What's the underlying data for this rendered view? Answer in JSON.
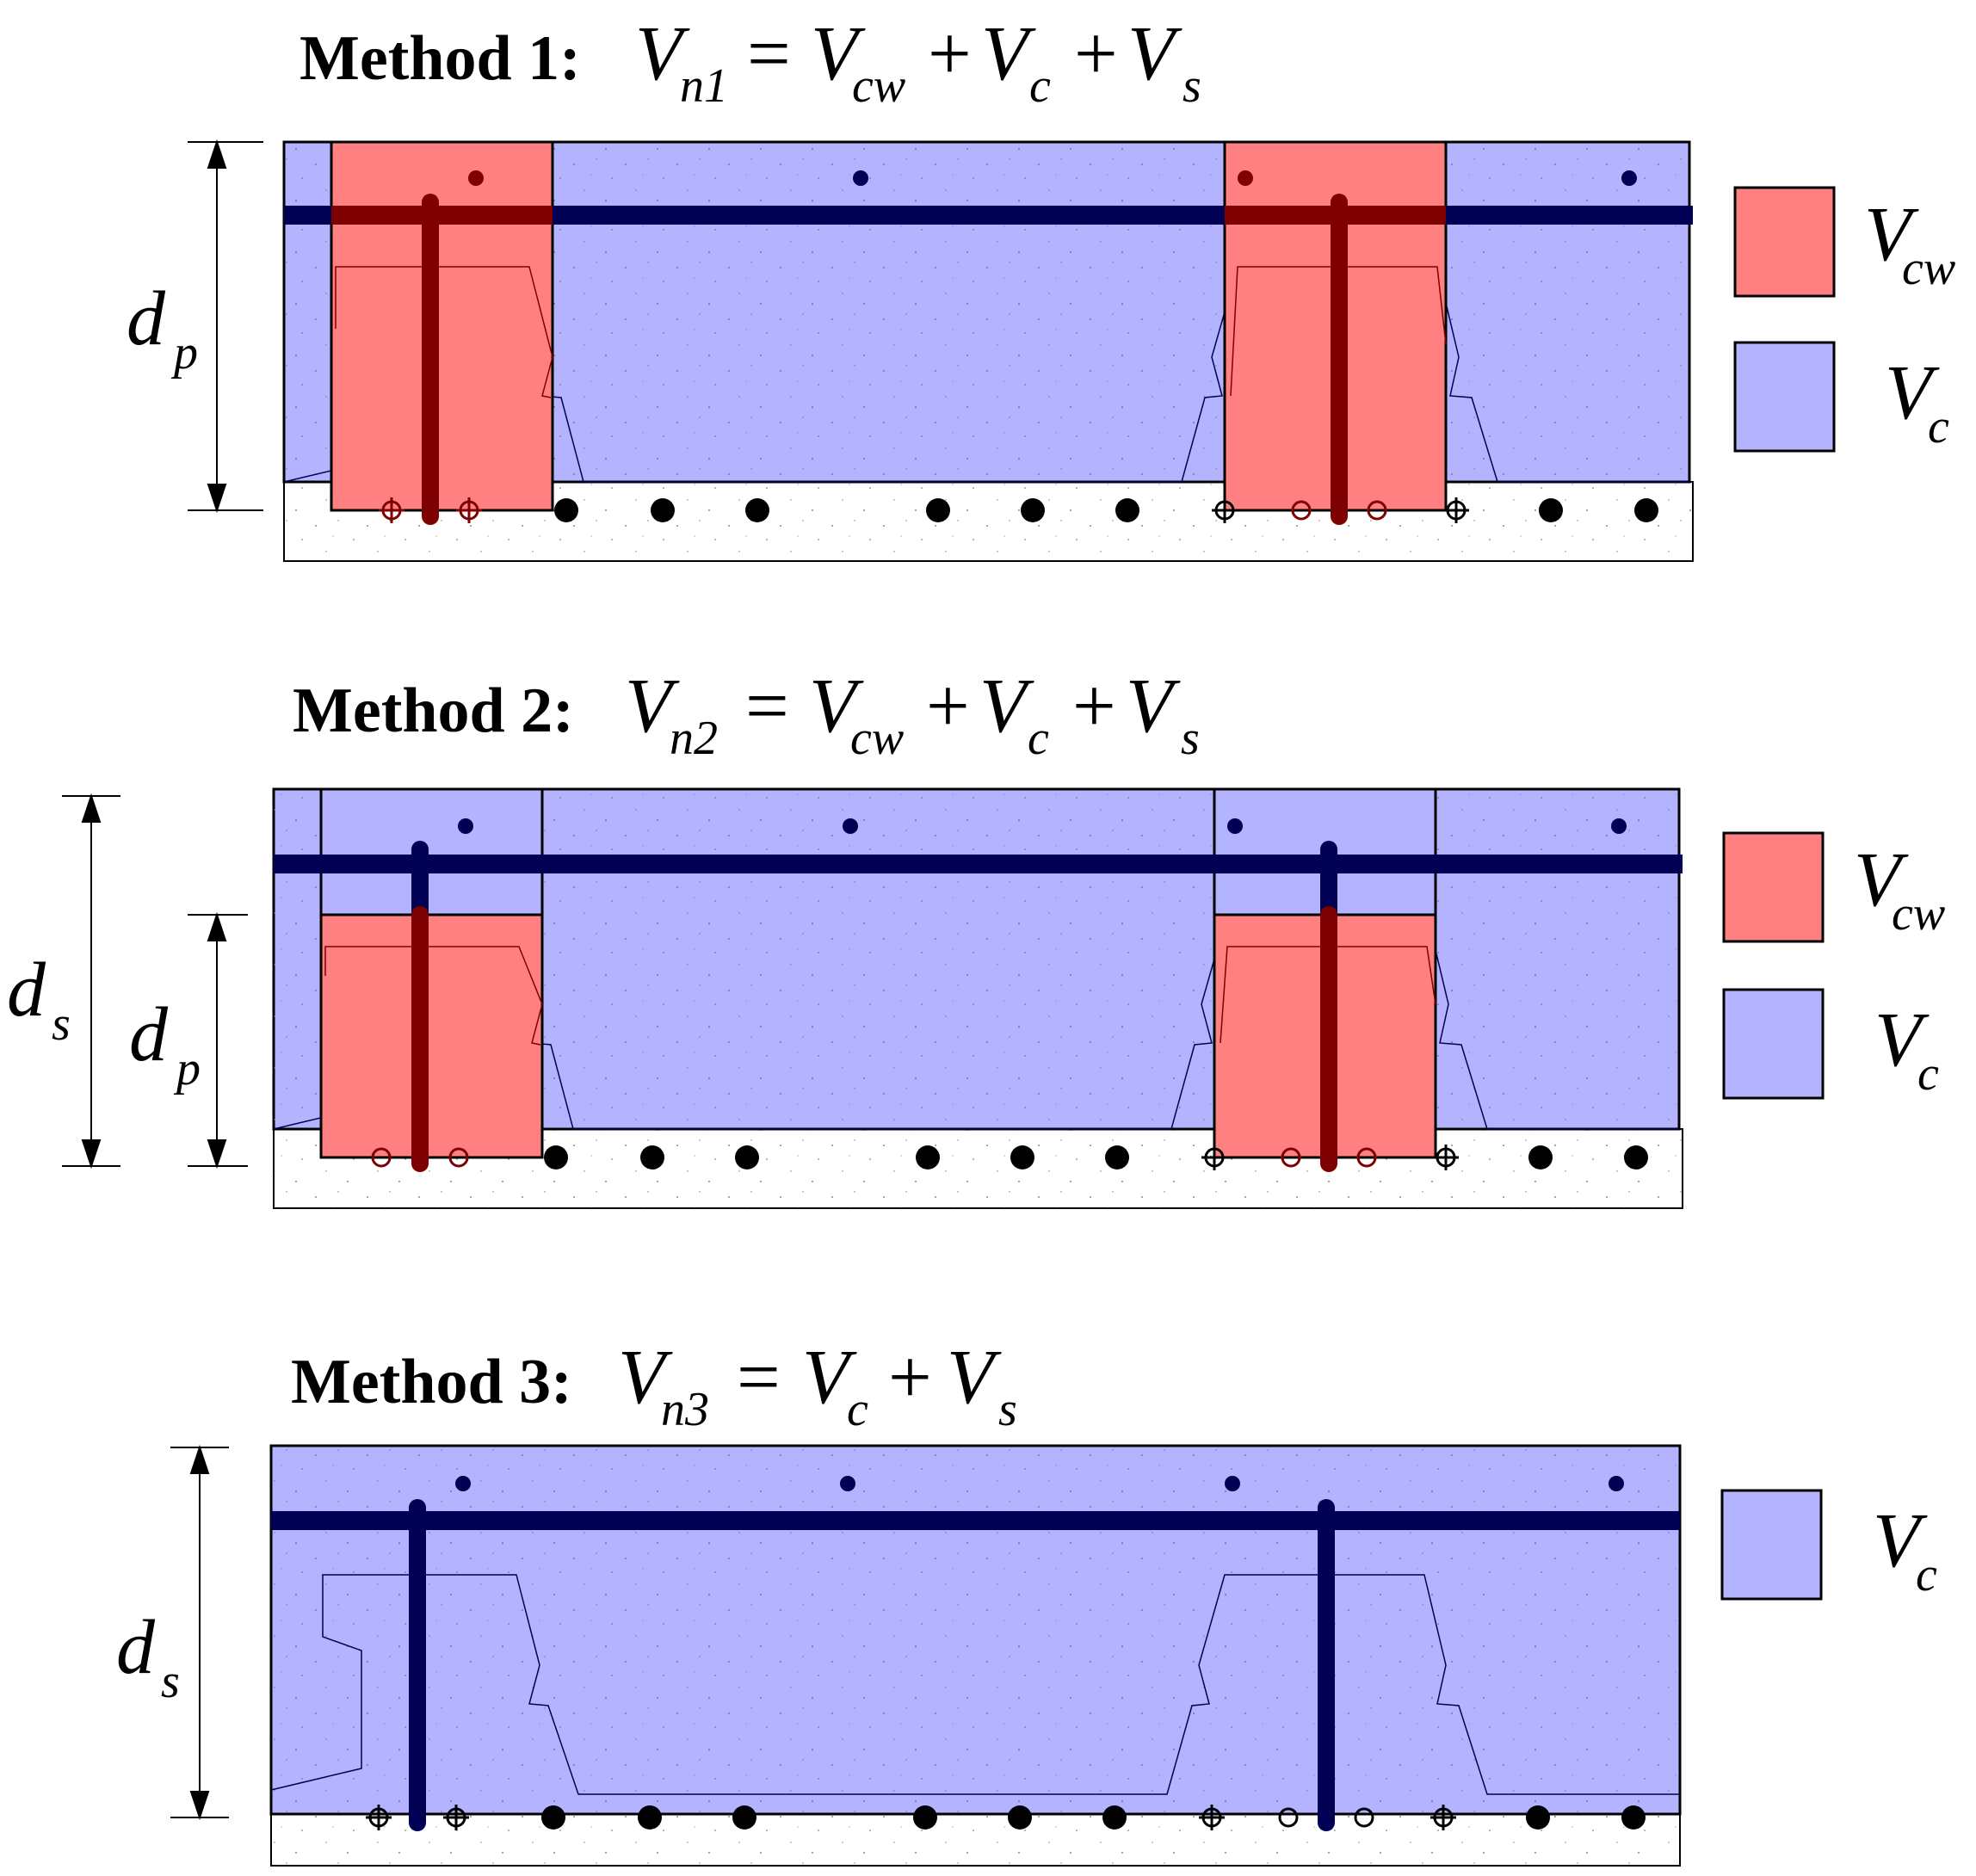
{
  "colors": {
    "v_cw_fill": "#ff8080",
    "v_c_fill": "#b3b3ff",
    "topping_fill": "#ffffff",
    "rebar_blue": "#000054",
    "rebar_dark_red": "#7f0000",
    "outline": "#000000"
  },
  "methods": [
    {
      "label": "Method 1:",
      "eq_lhs": "V",
      "eq_lhs_sub": "n1",
      "eq_rhs": [
        {
          "sym": "V",
          "sub": "cw"
        },
        {
          "sym": "V",
          "sub": "c"
        },
        {
          "sym": "V",
          "sub": "s"
        }
      ],
      "dims": [
        {
          "sym": "d",
          "sub": "p"
        }
      ],
      "legend": [
        {
          "sym": "V",
          "sub": "cw",
          "color_key": "v_cw_fill"
        },
        {
          "sym": "V",
          "sub": "c",
          "color_key": "v_c_fill"
        }
      ]
    },
    {
      "label": "Method 2:",
      "eq_lhs": "V",
      "eq_lhs_sub": "n2",
      "eq_rhs": [
        {
          "sym": "V",
          "sub": "cw"
        },
        {
          "sym": "V",
          "sub": "c"
        },
        {
          "sym": "V",
          "sub": "s"
        }
      ],
      "dims": [
        {
          "sym": "d",
          "sub": "s"
        },
        {
          "sym": "d",
          "sub": "p"
        }
      ],
      "legend": [
        {
          "sym": "V",
          "sub": "cw",
          "color_key": "v_cw_fill"
        },
        {
          "sym": "V",
          "sub": "c",
          "color_key": "v_c_fill"
        }
      ]
    },
    {
      "label": "Method 3:",
      "eq_lhs": "V",
      "eq_lhs_sub": "n3",
      "eq_rhs": [
        {
          "sym": "V",
          "sub": "c"
        },
        {
          "sym": "V",
          "sub": "s"
        }
      ],
      "dims": [
        {
          "sym": "d",
          "sub": "s"
        }
      ],
      "legend": [
        {
          "sym": "V",
          "sub": "c",
          "color_key": "v_c_fill"
        }
      ]
    }
  ],
  "operators": {
    "equals": "=",
    "plus": "+"
  }
}
